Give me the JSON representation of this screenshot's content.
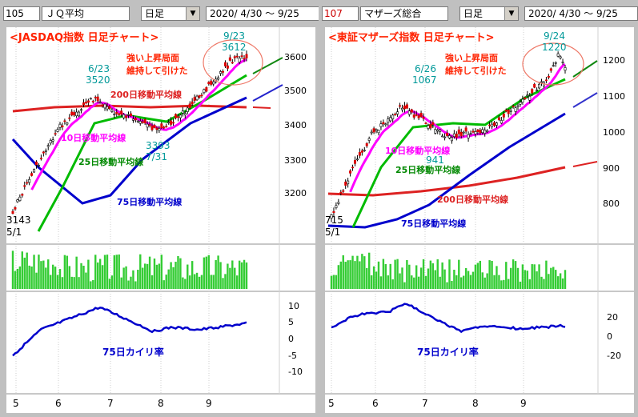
{
  "panels": [
    {
      "code": "105",
      "name": "ＪＱ平均",
      "period": "日足",
      "range": "2020/ 4/30 ～  9/25",
      "code_color": "#000000",
      "title": "<JASDAQ指数  日足チャート>",
      "note": [
        "強い上昇局面",
        "維持して引けた"
      ],
      "ann_high": {
        "date": "9/23",
        "value": "3612"
      },
      "ann_peak": {
        "date": "6/23",
        "value": "3520"
      },
      "ann_low": {
        "date": "7/31",
        "value": "3393"
      },
      "ann_start": {
        "date": "5/1",
        "value": "3143"
      },
      "yticks": [
        3600,
        3500,
        3400,
        3300,
        3200
      ],
      "osc_ticks": [
        "10",
        "5",
        "0",
        "-5",
        "-10"
      ],
      "ma_labels": {
        "ma200": "200日移動平均線",
        "ma10": "10日移動平均線",
        "ma25": "25日移動平均線",
        "ma75": "75日移動平均線"
      },
      "osc_label": "75日カイリ率",
      "months": [
        "5",
        "6",
        "7",
        "8",
        "9"
      ]
    },
    {
      "code": "107",
      "name": "マザーズ総合",
      "period": "日足",
      "range": "2020/ 4/30 ～  9/25",
      "code_color": "#cc0000",
      "title": "<東証マザーズ指数  日足チャート>",
      "note": [
        "強い上昇局面",
        "維持して引けた"
      ],
      "ann_high": {
        "date": "9/24",
        "value": "1220"
      },
      "ann_peak": {
        "date": "6/26",
        "value": "1067"
      },
      "ann_low": {
        "date": "",
        "value": "941"
      },
      "ann_start": {
        "date": "5/1",
        "value": "715"
      },
      "yticks": [
        1200,
        1100,
        1000,
        900,
        800
      ],
      "osc_ticks": [
        "20",
        "0",
        "-20"
      ],
      "ma_labels": {
        "ma200": "200日移動平均線",
        "ma10": "10日移動平均線",
        "ma25": "25日移動平均線",
        "ma75": "75日移動平均線"
      },
      "osc_label": "75日カイリ率",
      "months": [
        "5",
        "6",
        "7",
        "8",
        "9"
      ]
    }
  ],
  "colors": {
    "ma200": "#dd2222",
    "ma10": "#ff00ff",
    "ma25": "#00bb00",
    "ma75": "#0000cc",
    "up": "#ffffff",
    "down": "#dd0000",
    "volume": "#33cc33",
    "osc": "#0000cc",
    "title": "#ff2200",
    "note": "#ff2200",
    "ann": "#009999",
    "circle": "#ee7766"
  },
  "chart_data": [
    {
      "type": "candlestick",
      "title": "<JASDAQ指数  日足チャート>",
      "x_range": [
        "2020-05-01",
        "2020-09-25"
      ],
      "ylim": [
        3130,
        3650
      ],
      "close_anchors": [
        [
          "2020-05-01",
          3143
        ],
        [
          "2020-05-14",
          3300
        ],
        [
          "2020-06-01",
          3420
        ],
        [
          "2020-06-23",
          3520
        ],
        [
          "2020-07-08",
          3440
        ],
        [
          "2020-07-20",
          3460
        ],
        [
          "2020-07-31",
          3393
        ],
        [
          "2020-08-14",
          3470
        ],
        [
          "2020-09-01",
          3530
        ],
        [
          "2020-09-23",
          3612
        ],
        [
          "2020-09-25",
          3580
        ]
      ],
      "ma200_anchors": [
        [
          3440,
          3455
        ],
        [
          3460,
          3460
        ],
        [
          3458,
          3455
        ]
      ],
      "osc_75d": {
        "ylim": [
          -10,
          10
        ],
        "first": -6,
        "peak": 9,
        "last": 3
      }
    },
    {
      "type": "candlestick",
      "title": "<東証マザーズ指数  日足チャート>",
      "x_range": [
        "2020-05-01",
        "2020-09-25"
      ],
      "ylim": [
        700,
        1260
      ],
      "close_anchors": [
        [
          "2020-05-01",
          715
        ],
        [
          "2020-05-14",
          870
        ],
        [
          "2020-06-01",
          990
        ],
        [
          "2020-06-26",
          1067
        ],
        [
          "2020-07-13",
          970
        ],
        [
          "2020-07-31",
          941
        ],
        [
          "2020-08-14",
          1050
        ],
        [
          "2020-09-01",
          1140
        ],
        [
          "2020-09-24",
          1220
        ],
        [
          "2020-09-25",
          1195
        ]
      ],
      "osc_75d": {
        "ylim": [
          -20,
          25
        ],
        "first": 0,
        "peak": 25,
        "last": 14
      }
    }
  ]
}
